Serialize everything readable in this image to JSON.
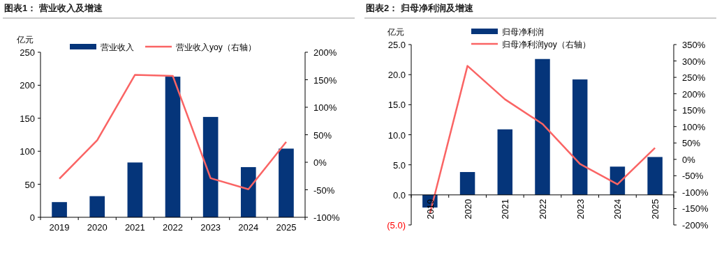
{
  "chart_data": [
    {
      "type": "bar",
      "title": "图表1：  营业收入及增速",
      "ylabel": "亿元",
      "legend": "top",
      "categories": [
        "2019",
        "2020",
        "2021",
        "2022",
        "2023",
        "2024",
        "2025"
      ],
      "series": [
        {
          "name": "营业收入",
          "color": "#05357a",
          "values": [
            23,
            32,
            83,
            213,
            152,
            76,
            104
          ]
        },
        {
          "name": "营业收入yoy（右轴）",
          "type": "line",
          "axis": "y2",
          "color": "#fa6464",
          "values": [
            -30,
            40,
            159,
            157,
            -29,
            -49,
            37
          ]
        }
      ],
      "ylim": [
        0,
        250
      ],
      "yticks": [
        0,
        50,
        100,
        150,
        200,
        250
      ],
      "y2lim": [
        -100,
        200
      ],
      "y2ticks": [
        {
          "value": -100,
          "label": "-100%"
        },
        {
          "value": -50,
          "label": "-50%"
        },
        {
          "value": 0,
          "label": "0%"
        },
        {
          "value": 50,
          "label": "50%"
        },
        {
          "value": 100,
          "label": "100%"
        },
        {
          "value": 150,
          "label": "150%"
        },
        {
          "value": 200,
          "label": "200%"
        }
      ]
    },
    {
      "type": "bar",
      "title": "图表2：  归母净利润及增速",
      "ylabel": "亿元",
      "legend": "top",
      "categories": [
        "2019",
        "2020",
        "2021",
        "2022",
        "2023",
        "2024",
        "2025"
      ],
      "series": [
        {
          "name": "归母净利润",
          "color": "#05357a",
          "values": [
            -2.1,
            3.8,
            10.9,
            22.6,
            19.2,
            4.7,
            6.3
          ]
        },
        {
          "name": "归母净利润yoy（右轴）",
          "type": "line",
          "axis": "y2",
          "color": "#fa6464",
          "values": [
            -165,
            285,
            183,
            108,
            -14,
            -76,
            35
          ]
        }
      ],
      "ylim": [
        -5,
        25
      ],
      "yticks": [
        {
          "value": -5,
          "label": "(5.0)"
        },
        {
          "value": 0,
          "label": "0.0"
        },
        {
          "value": 5,
          "label": "5.0"
        },
        {
          "value": 10,
          "label": "10.0"
        },
        {
          "value": 15,
          "label": "15.0"
        },
        {
          "value": 20,
          "label": "20.0"
        },
        {
          "value": 25,
          "label": "25.0"
        }
      ],
      "y2lim": [
        -200,
        350
      ],
      "y2ticks": [
        {
          "value": -200,
          "label": "-200%"
        },
        {
          "value": -150,
          "label": "-150%"
        },
        {
          "value": -100,
          "label": "-100%"
        },
        {
          "value": -50,
          "label": "-50%"
        },
        {
          "value": 0,
          "label": "0%"
        },
        {
          "value": 50,
          "label": "50%"
        },
        {
          "value": 100,
          "label": "100%"
        },
        {
          "value": 150,
          "label": "150%"
        },
        {
          "value": 200,
          "label": "200%"
        },
        {
          "value": 250,
          "label": "250%"
        },
        {
          "value": 300,
          "label": "300%"
        },
        {
          "value": 350,
          "label": "350%"
        }
      ]
    }
  ]
}
